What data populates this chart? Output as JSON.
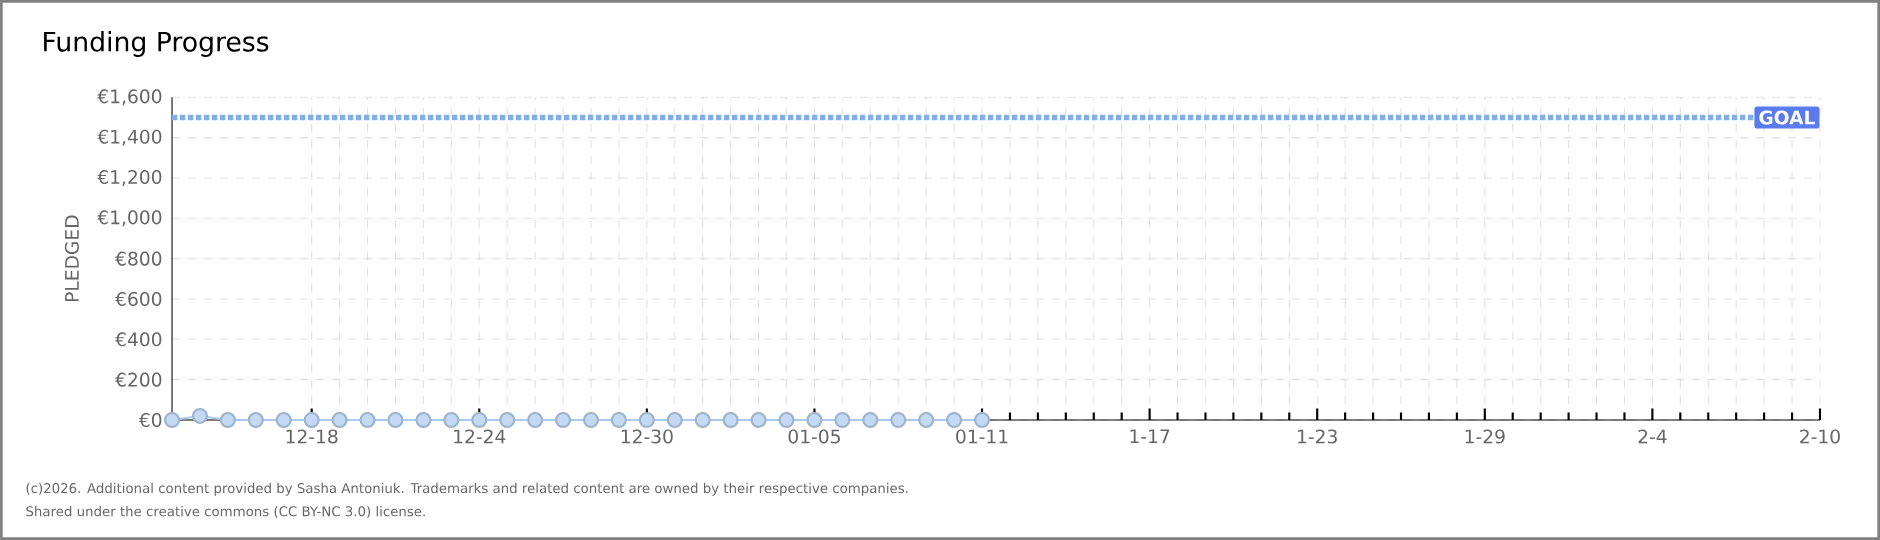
{
  "chart_data": {
    "type": "line",
    "title": "Funding Progress",
    "ylabel": "PLEDGED",
    "annotations": [
      "(c)2026. Additional content provided by Sasha Antoniuk. Trademarks and related content are owned by their respective companies.",
      "Shared under the creative commons (CC BY-NC 3.0) license."
    ],
    "x": [
      "2025-12-13",
      "2025-12-14",
      "2025-12-15",
      "2025-12-16",
      "2025-12-17",
      "2025-12-18",
      "2025-12-19",
      "2025-12-20",
      "2025-12-21",
      "2025-12-22",
      "2025-12-23",
      "2025-12-24",
      "2025-12-25",
      "2025-12-26",
      "2025-12-27",
      "2025-12-28",
      "2025-12-29",
      "2025-12-30",
      "2025-12-31",
      "2026-01-01",
      "2026-01-02",
      "2026-01-03",
      "2026-01-04",
      "2026-01-05",
      "2026-01-06",
      "2026-01-07",
      "2026-01-08",
      "2026-01-09",
      "2026-01-10",
      "2026-01-11"
    ],
    "series": [
      {
        "color": "#a9c9ef",
        "values": [
          0,
          20,
          0,
          0,
          0,
          0,
          0,
          0,
          0,
          0,
          0,
          0,
          0,
          0,
          0,
          0,
          0,
          0,
          0,
          0,
          0,
          0,
          0,
          0,
          0,
          0,
          0,
          0,
          0,
          0
        ]
      }
    ],
    "marker": "circle",
    "line_style": "solid",
    "grid": true,
    "xlim": [
      "2025-12-13",
      "2026-02-10"
    ],
    "xticks": [
      {
        "value": "2025-12-18",
        "label": "12-18"
      },
      {
        "value": "2025-12-24",
        "label": "12-24"
      },
      {
        "value": "2025-12-30",
        "label": "12-30"
      },
      {
        "value": "2026-01-05",
        "label": "01-05"
      },
      {
        "value": "2026-01-11",
        "label": "01-11"
      },
      {
        "value": "2026-01-17",
        "label": "1-17"
      },
      {
        "value": "2026-01-23",
        "label": "1-23"
      },
      {
        "value": "2026-01-29",
        "label": "1-29"
      },
      {
        "value": "2026-02-04",
        "label": "2-4"
      },
      {
        "value": "2026-02-10",
        "label": "2-10"
      }
    ],
    "ylim": [
      0,
      1600
    ],
    "yticks": [
      {
        "value": 0,
        "label": "€0"
      },
      {
        "value": 200,
        "label": "€200"
      },
      {
        "value": 400,
        "label": "€400"
      },
      {
        "value": 600,
        "label": "€600"
      },
      {
        "value": 800,
        "label": "€800"
      },
      {
        "value": 1000,
        "label": "€1,000"
      },
      {
        "value": 1200,
        "label": "€1,200"
      },
      {
        "value": 1400,
        "label": "€1,400"
      },
      {
        "value": 1600,
        "label": "€1,600"
      }
    ],
    "ref_lines": [
      {
        "axis": "y",
        "value": 1500,
        "label": "GOAL",
        "color": "#7fb0e6",
        "line_style": "dotted"
      }
    ]
  }
}
